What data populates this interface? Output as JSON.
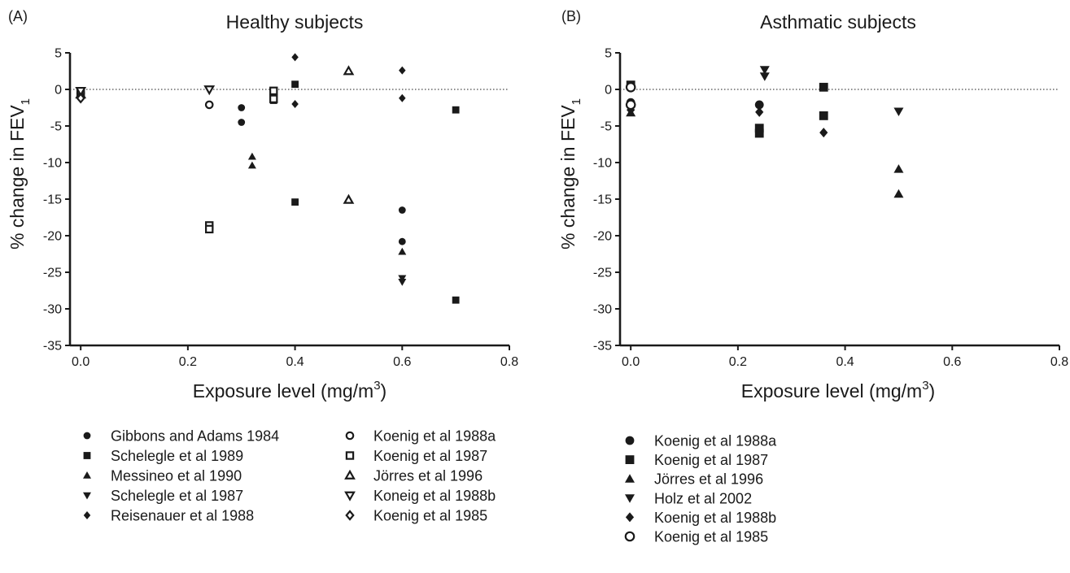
{
  "chart_data": [
    {
      "type": "scatter",
      "panel": "(A)",
      "title": "Healthy subjects",
      "xlabel": "Exposure level (mg/m",
      "xlabel_sup": "3",
      "xlabel_end": ")",
      "ylabel": "% change in FEV",
      "ylabel_sub": "1",
      "xlim": [
        -0.02,
        0.8
      ],
      "ylim": [
        -35,
        5
      ],
      "xticks": [
        "0.0",
        "0.2",
        "0.4",
        "0.6",
        "0.8"
      ],
      "xtick_values": [
        0,
        0.2,
        0.4,
        0.6,
        0.8
      ],
      "yticks": [
        "5",
        "0",
        "-5",
        "-10",
        "-15",
        "-20",
        "-25",
        "-30",
        "-35"
      ],
      "ytick_values": [
        5,
        0,
        -5,
        -10,
        -15,
        -20,
        -25,
        -30,
        -35
      ],
      "reference_line": 0,
      "legend_placement": "bottom, two columns",
      "series": [
        {
          "name": "Gibbons and Adams 1984",
          "marker": "circle-filled",
          "points": [
            [
              0.3,
              -2.5
            ],
            [
              0.3,
              -4.5
            ],
            [
              0.6,
              -16.5
            ],
            [
              0.6,
              -20.8
            ]
          ]
        },
        {
          "name": "Schelegle et al 1989",
          "marker": "square-filled",
          "points": [
            [
              0.36,
              -1.5
            ],
            [
              0.4,
              0.7
            ],
            [
              0.4,
              -15.4
            ],
            [
              0.7,
              -2.8
            ],
            [
              0.7,
              -28.8
            ]
          ]
        },
        {
          "name": "Messineo et al 1990",
          "marker": "triangle-filled",
          "points": [
            [
              0.32,
              -9.2
            ],
            [
              0.32,
              -10.4
            ],
            [
              0.6,
              -22.2
            ]
          ]
        },
        {
          "name": "Schelegle et al 1987",
          "marker": "triangle-down-filled",
          "points": [
            [
              0.6,
              -25.8
            ],
            [
              0.6,
              -26.3
            ]
          ]
        },
        {
          "name": "Reisenauer et al 1988",
          "marker": "diamond-filled",
          "points": [
            [
              0.4,
              4.4
            ],
            [
              0.4,
              -2.0
            ],
            [
              0.6,
              2.6
            ],
            [
              0.6,
              -1.2
            ]
          ]
        },
        {
          "name": "Koenig et al 1988a",
          "marker": "circle-open",
          "points": [
            [
              0.0,
              -0.5
            ],
            [
              0.24,
              -2.1
            ]
          ]
        },
        {
          "name": "Koenig et al 1987",
          "marker": "square-open",
          "points": [
            [
              0.0,
              -0.6
            ],
            [
              0.24,
              -18.6
            ],
            [
              0.24,
              -19.1
            ],
            [
              0.36,
              -0.2
            ],
            [
              0.36,
              -1.3
            ]
          ]
        },
        {
          "name": "Jörres et al 1996",
          "marker": "triangle-open",
          "points": [
            [
              0.0,
              -0.7
            ],
            [
              0.5,
              2.5
            ],
            [
              0.5,
              -15.1
            ]
          ]
        },
        {
          "name": "Koneig et al 1988b",
          "marker": "triangle-down-open",
          "points": [
            [
              0.0,
              -0.2
            ],
            [
              0.24,
              0.0
            ]
          ]
        },
        {
          "name": "Koenig et al 1985",
          "marker": "diamond-open",
          "points": [
            [
              0.0,
              -1.2
            ]
          ]
        }
      ]
    },
    {
      "type": "scatter",
      "panel": "(B)",
      "title": "Asthmatic subjects",
      "xlabel": "Exposure level (mg/m",
      "xlabel_sup": "3",
      "xlabel_end": ")",
      "ylabel": "% change in FEV",
      "ylabel_sub": "1",
      "xlim": [
        -0.02,
        0.8
      ],
      "ylim": [
        -35,
        5
      ],
      "xticks": [
        "0.0",
        "0.2",
        "0.4",
        "0.6",
        "0.8"
      ],
      "xtick_values": [
        0,
        0.2,
        0.4,
        0.6,
        0.8
      ],
      "yticks": [
        "5",
        "0",
        "-5",
        "-10",
        "-15",
        "-20",
        "-25",
        "-30",
        "-35"
      ],
      "ytick_values": [
        5,
        0,
        -5,
        -10,
        -15,
        -20,
        -25,
        -30,
        -35
      ],
      "reference_line": 0,
      "legend_placement": "bottom, one column",
      "series": [
        {
          "name": "Koenig et al 1988a",
          "marker": "circle-filled",
          "points": [
            [
              0.0,
              -1.8
            ],
            [
              0.24,
              -2.1
            ]
          ]
        },
        {
          "name": "Koenig et al 1987",
          "marker": "square-filled",
          "points": [
            [
              0.0,
              0.6
            ],
            [
              0.24,
              -5.3
            ],
            [
              0.24,
              -6.0
            ],
            [
              0.36,
              0.3
            ],
            [
              0.36,
              -3.6
            ]
          ]
        },
        {
          "name": "Jörres et al 1996",
          "marker": "triangle-filled",
          "points": [
            [
              0.0,
              -3.2
            ],
            [
              0.5,
              -10.9
            ],
            [
              0.5,
              -14.3
            ]
          ]
        },
        {
          "name": "Holz et al 2002",
          "marker": "triangle-down-filled",
          "points": [
            [
              0.25,
              2.7
            ],
            [
              0.25,
              1.8
            ],
            [
              0.5,
              -3.0
            ]
          ]
        },
        {
          "name": "Koenig et al 1988b",
          "marker": "diamond-filled",
          "points": [
            [
              0.0,
              -2.8
            ],
            [
              0.24,
              -3.1
            ],
            [
              0.36,
              -5.9
            ]
          ]
        },
        {
          "name": "Koenig et al 1985",
          "marker": "circle-open",
          "points": [
            [
              0.0,
              0.3
            ],
            [
              0.0,
              -2.1
            ]
          ]
        }
      ]
    }
  ]
}
